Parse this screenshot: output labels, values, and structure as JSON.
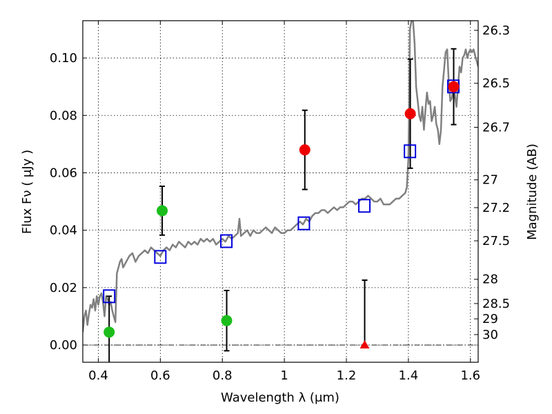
{
  "chart_data": {
    "type": "scatter",
    "xlabel": "Wavelength  λ (μm)",
    "ylabel_left": "Flux  Fν  ( μJy )",
    "ylabel_right": "Magnitude (AB)",
    "xlim": [
      0.35,
      1.625
    ],
    "ylim": [
      -0.006,
      0.113
    ],
    "grid": true,
    "x_ticks": [
      {
        "value": 0.4,
        "label": "0.4"
      },
      {
        "value": 0.6,
        "label": "0.6"
      },
      {
        "value": 0.8,
        "label": "0.8"
      },
      {
        "value": 1.0,
        "label": "1"
      },
      {
        "value": 1.2,
        "label": "1.2"
      },
      {
        "value": 1.4,
        "label": "1.4"
      },
      {
        "value": 1.6,
        "label": "1.6"
      }
    ],
    "y_ticks": [
      {
        "value": 0.0,
        "label": "0.00"
      },
      {
        "value": 0.02,
        "label": "0.02"
      },
      {
        "value": 0.04,
        "label": "0.04"
      },
      {
        "value": 0.06,
        "label": "0.06"
      },
      {
        "value": 0.08,
        "label": "0.08"
      },
      {
        "value": 0.1,
        "label": "0.10"
      }
    ],
    "mag_ticks": [
      {
        "value": 26.3,
        "label": "26.3"
      },
      {
        "value": 26.5,
        "label": "26.5"
      },
      {
        "value": 26.7,
        "label": "26.7"
      },
      {
        "value": 27.0,
        "label": "27"
      },
      {
        "value": 27.2,
        "label": "27.2"
      },
      {
        "value": 27.5,
        "label": "27.5"
      },
      {
        "value": 28.0,
        "label": "28"
      },
      {
        "value": 28.5,
        "label": "28.5"
      },
      {
        "value": 29.0,
        "label": "29"
      },
      {
        "value": 30.0,
        "label": "30"
      }
    ],
    "series": [
      {
        "kind": "spectrum",
        "color": "#808080",
        "x": [
          0.35,
          0.355,
          0.36,
          0.365,
          0.37,
          0.375,
          0.38,
          0.385,
          0.39,
          0.395,
          0.4,
          0.405,
          0.41,
          0.415,
          0.42,
          0.425,
          0.43,
          0.435,
          0.44,
          0.445,
          0.45,
          0.455,
          0.46,
          0.465,
          0.47,
          0.475,
          0.48,
          0.49,
          0.5,
          0.51,
          0.52,
          0.53,
          0.54,
          0.55,
          0.56,
          0.57,
          0.58,
          0.59,
          0.6,
          0.61,
          0.62,
          0.63,
          0.64,
          0.65,
          0.66,
          0.67,
          0.68,
          0.69,
          0.7,
          0.71,
          0.72,
          0.73,
          0.74,
          0.75,
          0.76,
          0.77,
          0.78,
          0.79,
          0.8,
          0.81,
          0.82,
          0.83,
          0.84,
          0.85,
          0.855,
          0.86,
          0.87,
          0.88,
          0.89,
          0.9,
          0.91,
          0.92,
          0.93,
          0.94,
          0.95,
          0.96,
          0.97,
          0.98,
          0.99,
          1.0,
          1.01,
          1.02,
          1.03,
          1.04,
          1.05,
          1.06,
          1.07,
          1.08,
          1.09,
          1.1,
          1.11,
          1.12,
          1.13,
          1.14,
          1.15,
          1.16,
          1.17,
          1.18,
          1.19,
          1.2,
          1.21,
          1.22,
          1.23,
          1.24,
          1.25,
          1.26,
          1.27,
          1.28,
          1.29,
          1.3,
          1.31,
          1.32,
          1.33,
          1.34,
          1.35,
          1.36,
          1.37,
          1.38,
          1.39,
          1.395,
          1.4,
          1.402,
          1.405,
          1.41,
          1.415,
          1.42,
          1.425,
          1.43,
          1.435,
          1.44,
          1.445,
          1.45,
          1.455,
          1.46,
          1.465,
          1.47,
          1.475,
          1.48,
          1.485,
          1.49,
          1.495,
          1.5,
          1.505,
          1.51,
          1.515,
          1.52,
          1.525,
          1.53,
          1.535,
          1.54,
          1.545,
          1.55,
          1.555,
          1.56,
          1.565,
          1.57,
          1.575,
          1.58,
          1.585,
          1.59,
          1.595,
          1.6,
          1.605,
          1.61,
          1.615,
          1.62,
          1.625
        ],
        "y": [
          0.0045,
          0.01,
          0.012,
          0.007,
          0.011,
          0.014,
          0.013,
          0.016,
          0.012,
          0.017,
          0.014,
          0.017,
          0.018,
          0.015,
          0.01,
          0.017,
          0.016,
          0.014,
          0.015,
          0.012,
          0.01,
          0.008,
          0.025,
          0.027,
          0.029,
          0.03,
          0.027,
          0.029,
          0.031,
          0.032,
          0.029,
          0.031,
          0.032,
          0.033,
          0.032,
          0.034,
          0.033,
          0.032,
          0.031,
          0.033,
          0.034,
          0.033,
          0.035,
          0.034,
          0.036,
          0.035,
          0.034,
          0.036,
          0.035,
          0.036,
          0.035,
          0.037,
          0.036,
          0.037,
          0.036,
          0.037,
          0.035,
          0.036,
          0.037,
          0.036,
          0.038,
          0.037,
          0.038,
          0.039,
          0.044,
          0.038,
          0.039,
          0.04,
          0.038,
          0.04,
          0.039,
          0.039,
          0.04,
          0.041,
          0.04,
          0.039,
          0.041,
          0.04,
          0.039,
          0.039,
          0.04,
          0.04,
          0.041,
          0.042,
          0.043,
          0.042,
          0.044,
          0.043,
          0.045,
          0.046,
          0.046,
          0.047,
          0.047,
          0.046,
          0.047,
          0.048,
          0.047,
          0.048,
          0.048,
          0.049,
          0.05,
          0.05,
          0.049,
          0.05,
          0.051,
          0.051,
          0.052,
          0.051,
          0.05,
          0.05,
          0.051,
          0.049,
          0.049,
          0.049,
          0.05,
          0.051,
          0.051,
          0.052,
          0.053,
          0.055,
          0.065,
          0.08,
          0.11,
          0.113,
          0.113,
          0.105,
          0.09,
          0.085,
          0.08,
          0.078,
          0.083,
          0.075,
          0.082,
          0.088,
          0.084,
          0.085,
          0.078,
          0.08,
          0.083,
          0.077,
          0.075,
          0.07,
          0.075,
          0.09,
          0.096,
          0.102,
          0.103,
          0.092,
          0.085,
          0.086,
          0.09,
          0.087,
          0.083,
          0.09,
          0.097,
          0.095,
          0.1,
          0.101,
          0.103,
          0.1,
          0.102,
          0.103,
          0.102,
          0.103,
          0.101,
          0.099,
          0.097
        ]
      },
      {
        "kind": "model-squares",
        "color": "#0000dd",
        "x": [
          0.435,
          0.6,
          0.813,
          1.063,
          1.258,
          1.405,
          1.545
        ],
        "y": [
          0.017,
          0.0307,
          0.0362,
          0.0424,
          0.0485,
          0.0675,
          0.0901
        ]
      },
      {
        "kind": "green-points",
        "color": "#1bbd1b",
        "x": [
          0.435,
          0.606,
          0.814
        ],
        "y": [
          0.0045,
          0.0468,
          0.0085
        ],
        "yerr": [
          0.0,
          0.0085,
          0.0105
        ]
      },
      {
        "kind": "red-points",
        "color": "#ee0000",
        "x": [
          1.066,
          1.406,
          1.546
        ],
        "y": [
          0.068,
          0.0806,
          0.09
        ],
        "yerr": [
          0.0138,
          0.019,
          0.0132
        ]
      },
      {
        "kind": "red-triangle",
        "color": "#ee0000",
        "x": [
          1.259
        ],
        "y": [
          0.0
        ],
        "err_low": [
          0.0
        ],
        "err_high": [
          0.0226
        ]
      }
    ],
    "extra_errorbars": [
      {
        "x": 0.435,
        "y_low": -0.006,
        "y_high": 0.017
      }
    ]
  }
}
